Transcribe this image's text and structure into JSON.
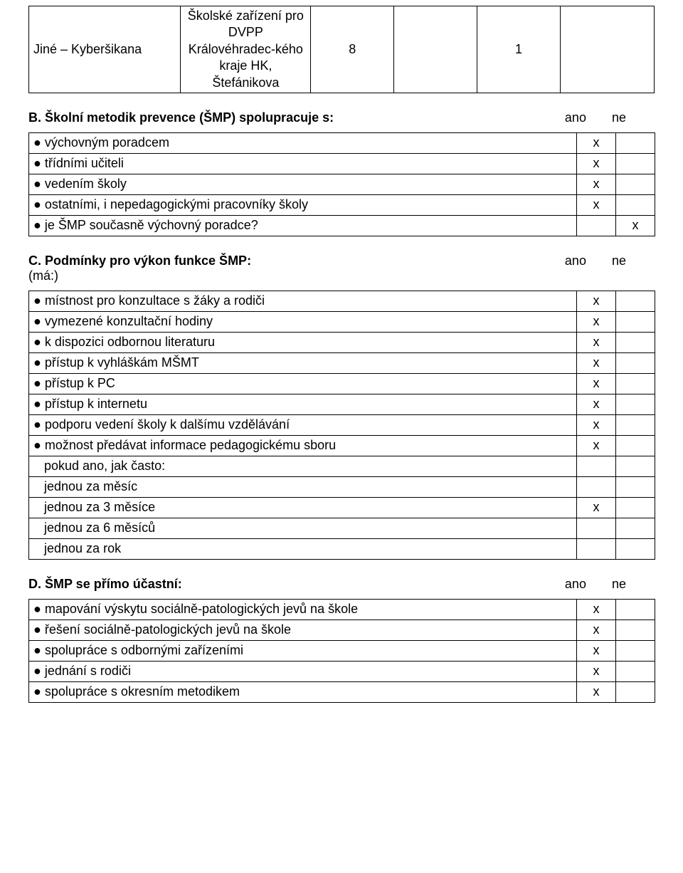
{
  "topTable": {
    "row": {
      "label": "Jiné – Kyberšikana",
      "provider": "Školské zařízení pro DVPP Královéhradec-kého kraje HK, Štefánikova",
      "c3": "8",
      "c4": "",
      "c5": "1",
      "c6": ""
    }
  },
  "sectionB": {
    "title": "B. Školní metodik prevence (ŠMP) spolupracuje s:",
    "ano": "ano",
    "ne": "ne",
    "rows": [
      {
        "label": "● výchovným poradcem",
        "c1": "x",
        "c2": ""
      },
      {
        "label": "● třídními učiteli",
        "c1": "x",
        "c2": ""
      },
      {
        "label": "● vedením školy",
        "c1": "x",
        "c2": ""
      },
      {
        "label": "● ostatními, i nepedagogickými pracovníky školy",
        "c1": "x",
        "c2": ""
      },
      {
        "label": "● je ŠMP současně výchovný poradce?",
        "c1": "",
        "c2": "x"
      }
    ]
  },
  "sectionC": {
    "title": "C. Podmínky pro výkon funkce ŠMP:",
    "sub": "(má:)",
    "ano": "ano",
    "ne": "ne",
    "rows": [
      {
        "label": "● místnost pro konzultace s žáky a rodiči",
        "c1": "x",
        "c2": ""
      },
      {
        "label": "● vymezené konzultační hodiny",
        "c1": "x",
        "c2": ""
      },
      {
        "label": "● k dispozici odbornou literaturu",
        "c1": "x",
        "c2": ""
      },
      {
        "label": "● přístup k vyhláškám MŠMT",
        "c1": "x",
        "c2": ""
      },
      {
        "label": "● přístup k PC",
        "c1": "x",
        "c2": ""
      },
      {
        "label": "● přístup k internetu",
        "c1": "x",
        "c2": ""
      },
      {
        "label": "● podporu vedení školy k dalšímu vzdělávání",
        "c1": "x",
        "c2": ""
      },
      {
        "label": "● možnost předávat informace pedagogickému sboru",
        "c1": "x",
        "c2": ""
      },
      {
        "label": "   pokud ano, jak často:",
        "c1": "",
        "c2": ""
      },
      {
        "label": "   jednou za měsíc",
        "c1": "",
        "c2": ""
      },
      {
        "label": "   jednou za 3 měsíce",
        "c1": "x",
        "c2": ""
      },
      {
        "label": "   jednou za 6 měsíců",
        "c1": "",
        "c2": ""
      },
      {
        "label": "   jednou za rok",
        "c1": "",
        "c2": ""
      }
    ]
  },
  "sectionD": {
    "title": "D. ŠMP se přímo účastní:",
    "ano": "ano",
    "ne": "ne",
    "rows": [
      {
        "label": "● mapování výskytu sociálně-patologických jevů na škole",
        "c1": "x",
        "c2": ""
      },
      {
        "label": "● řešení sociálně-patologických jevů na škole",
        "c1": "x",
        "c2": ""
      },
      {
        "label": "● spolupráce s odbornými zařízeními",
        "c1": "x",
        "c2": ""
      },
      {
        "label": "● jednání s rodiči",
        "c1": "x",
        "c2": ""
      },
      {
        "label": "● spolupráce s okresním metodikem",
        "c1": "x",
        "c2": ""
      }
    ]
  }
}
